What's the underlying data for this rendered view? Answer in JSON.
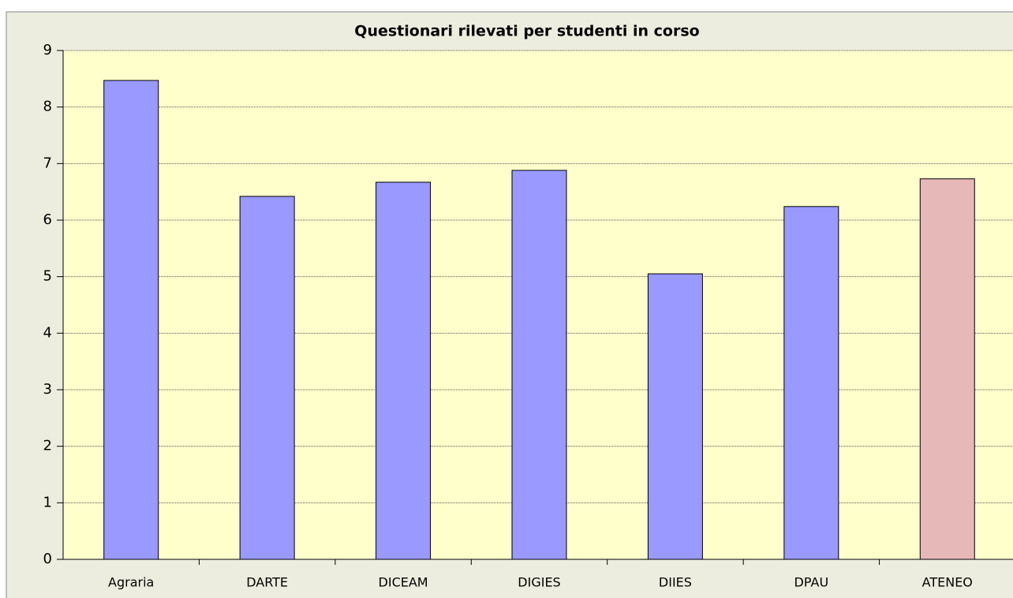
{
  "chart_data": {
    "type": "bar",
    "title": "Questionari rilevati per studenti in corso",
    "categories": [
      "Agraria",
      "DARTE",
      "DICEAM",
      "DIGIES",
      "DIIES",
      "DPAU",
      "ATENEO"
    ],
    "values": [
      8.47,
      6.42,
      6.67,
      6.88,
      5.05,
      6.24,
      6.73
    ],
    "colors": [
      "#9999ff",
      "#9999ff",
      "#9999ff",
      "#9999ff",
      "#9999ff",
      "#9999ff",
      "#e6b8b7"
    ],
    "ylim": [
      0,
      9
    ],
    "yticks": [
      0,
      1,
      2,
      3,
      4,
      5,
      6,
      7,
      8,
      9
    ],
    "grid": true
  }
}
